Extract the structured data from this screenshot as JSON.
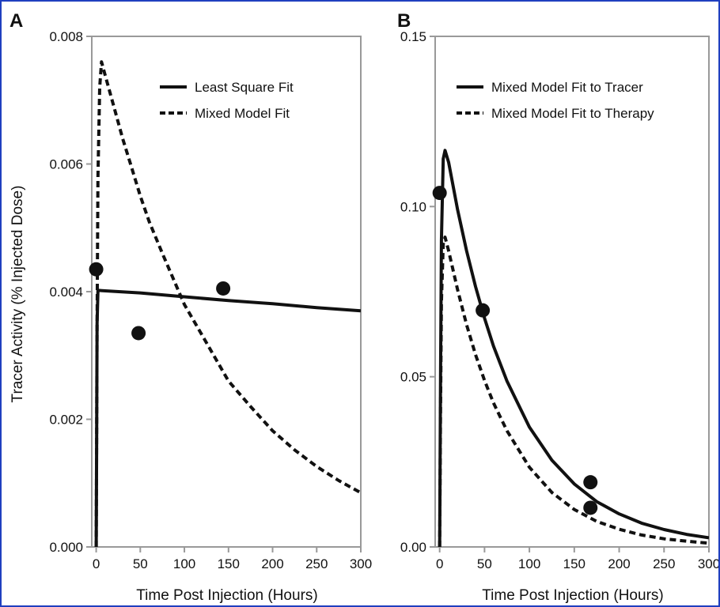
{
  "figure": {
    "ylabel": "Tracer Activity (% Injected Dose)",
    "frame_color": "#999999",
    "border_color": "#1f3fbf"
  },
  "chart_data": [
    {
      "type": "line",
      "panel": "A",
      "xlabel": "Time Post Injection (Hours)",
      "xlim": [
        -5,
        300
      ],
      "ylim": [
        0,
        0.008
      ],
      "xticks": [
        "0",
        "50",
        "100",
        "150",
        "200",
        "250",
        "300"
      ],
      "yticks": [
        "0.000",
        "0.002",
        "0.004",
        "0.006",
        "0.008"
      ],
      "legend_position": "top-right",
      "series": [
        {
          "name": "Least Square Fit",
          "style": "solid",
          "x": [
            0,
            0.5,
            1,
            2,
            50,
            100,
            150,
            200,
            250,
            300
          ],
          "y": [
            0,
            0.0015,
            0.0035,
            0.00402,
            0.00398,
            0.00392,
            0.00386,
            0.00381,
            0.00375,
            0.0037
          ]
        },
        {
          "name": "Mixed Model Fit",
          "style": "dashed",
          "x": [
            0,
            1,
            2,
            4,
            6,
            10,
            20,
            30,
            40,
            50,
            60,
            75,
            100,
            125,
            150,
            175,
            200,
            225,
            250,
            275,
            300
          ],
          "y": [
            0,
            0.0035,
            0.0058,
            0.0072,
            0.0076,
            0.0074,
            0.0069,
            0.0064,
            0.00595,
            0.0055,
            0.0051,
            0.0046,
            0.0038,
            0.0032,
            0.0026,
            0.0022,
            0.00182,
            0.00152,
            0.00126,
            0.00104,
            0.00085
          ]
        }
      ],
      "points": {
        "x": [
          0,
          48,
          144
        ],
        "y": [
          0.00435,
          0.00335,
          0.00405
        ]
      }
    },
    {
      "type": "line",
      "panel": "B",
      "xlabel": "Time Post Injection (Hours)",
      "xlim": [
        -5,
        300
      ],
      "ylim": [
        0,
        0.15
      ],
      "xticks": [
        "0",
        "50",
        "100",
        "150",
        "200",
        "250",
        "300"
      ],
      "yticks": [
        "0.00",
        "0.05",
        "0.10",
        "0.15"
      ],
      "legend_position": "top",
      "series": [
        {
          "name": "Mixed Model Fit to Tracer",
          "style": "solid",
          "x": [
            0,
            1,
            2,
            4,
            6,
            10,
            20,
            30,
            40,
            50,
            60,
            75,
            100,
            125,
            150,
            175,
            200,
            225,
            250,
            275,
            300
          ],
          "y": [
            0,
            0.05,
            0.09,
            0.114,
            0.1165,
            0.113,
            0.099,
            0.087,
            0.0765,
            0.0672,
            0.059,
            0.0487,
            0.0352,
            0.0255,
            0.0185,
            0.0133,
            0.0097,
            0.007,
            0.0051,
            0.0037,
            0.0027
          ]
        },
        {
          "name": "Mixed Model Fit to Therapy",
          "style": "dashed",
          "x": [
            0,
            1,
            2,
            4,
            6,
            10,
            20,
            30,
            40,
            50,
            60,
            75,
            100,
            125,
            150,
            175,
            200,
            225,
            250,
            275,
            300
          ],
          "y": [
            0,
            0.04,
            0.072,
            0.089,
            0.091,
            0.087,
            0.0755,
            0.0653,
            0.0565,
            0.0489,
            0.0423,
            0.0341,
            0.0234,
            0.016,
            0.011,
            0.0075,
            0.0052,
            0.0035,
            0.0024,
            0.0017,
            0.0011
          ]
        }
      ],
      "points": {
        "x": [
          0,
          48,
          168,
          168
        ],
        "y": [
          0.104,
          0.0695,
          0.019,
          0.0115
        ]
      }
    }
  ]
}
